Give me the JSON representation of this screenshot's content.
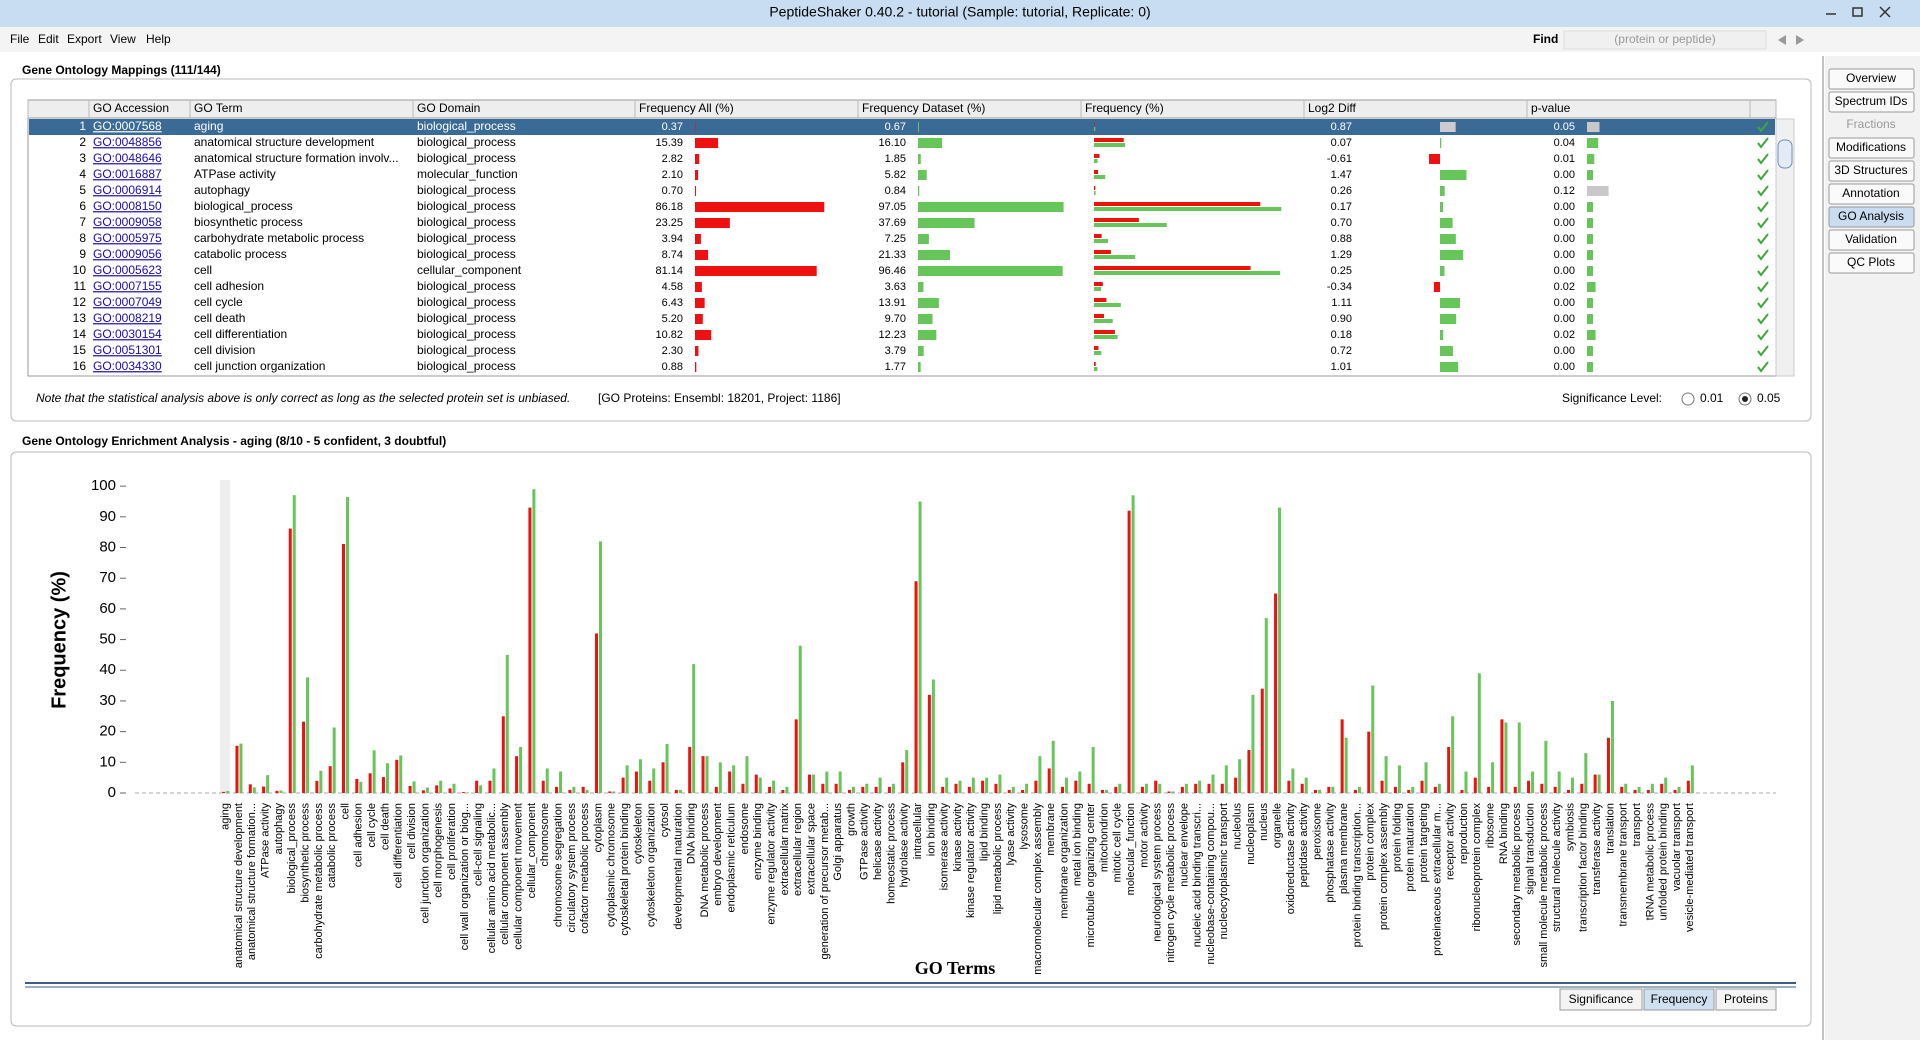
{
  "window": {
    "title": "PeptideShaker 0.40.2 - tutorial (Sample: tutorial, Replicate: 0)"
  },
  "menu": [
    "File",
    "Edit",
    "Export",
    "View",
    "Help"
  ],
  "find": {
    "label": "Find",
    "placeholder": "(protein or peptide)"
  },
  "side_tabs": [
    "Overview",
    "Spectrum IDs",
    "Fractions",
    "Modifications",
    "3D Structures",
    "Annotation",
    "GO Analysis",
    "Validation",
    "QC Plots"
  ],
  "mappings": {
    "title": "Gene Ontology Mappings (111/144)",
    "columns": [
      "GO Accession",
      "GO Term",
      "GO Domain",
      "Frequency All (%)",
      "Frequency Dataset (%)",
      "Frequency (%)",
      "Log2 Diff",
      "p-value"
    ],
    "rows": [
      [
        1,
        "GO:0007568",
        "aging",
        "biological_process",
        "0.37",
        "0.67",
        "0.87",
        "0.05"
      ],
      [
        2,
        "GO:0048856",
        "anatomical structure development",
        "biological_process",
        "15.39",
        "16.10",
        "0.07",
        "0.04"
      ],
      [
        3,
        "GO:0048646",
        "anatomical structure formation involv...",
        "biological_process",
        "2.82",
        "1.85",
        "-0.61",
        "0.01"
      ],
      [
        4,
        "GO:0016887",
        "ATPase activity",
        "molecular_function",
        "2.10",
        "5.82",
        "1.47",
        "0.00"
      ],
      [
        5,
        "GO:0006914",
        "autophagy",
        "biological_process",
        "0.70",
        "0.84",
        "0.26",
        "0.12"
      ],
      [
        6,
        "GO:0008150",
        "biological_process",
        "biological_process",
        "86.18",
        "97.05",
        "0.17",
        "0.00"
      ],
      [
        7,
        "GO:0009058",
        "biosynthetic process",
        "biological_process",
        "23.25",
        "37.69",
        "0.70",
        "0.00"
      ],
      [
        8,
        "GO:0005975",
        "carbohydrate metabolic process",
        "biological_process",
        "3.94",
        "7.25",
        "0.88",
        "0.00"
      ],
      [
        9,
        "GO:0009056",
        "catabolic process",
        "biological_process",
        "8.74",
        "21.33",
        "1.29",
        "0.00"
      ],
      [
        10,
        "GO:0005623",
        "cell",
        "cellular_component",
        "81.14",
        "96.46",
        "0.25",
        "0.00"
      ],
      [
        11,
        "GO:0007155",
        "cell adhesion",
        "biological_process",
        "4.58",
        "3.63",
        "-0.34",
        "0.02"
      ],
      [
        12,
        "GO:0007049",
        "cell cycle",
        "biological_process",
        "6.43",
        "13.91",
        "1.11",
        "0.00"
      ],
      [
        13,
        "GO:0008219",
        "cell death",
        "biological_process",
        "5.20",
        "9.70",
        "0.90",
        "0.00"
      ],
      [
        14,
        "GO:0030154",
        "cell differentiation",
        "biological_process",
        "10.82",
        "12.23",
        "0.18",
        "0.02"
      ],
      [
        15,
        "GO:0051301",
        "cell division",
        "biological_process",
        "2.30",
        "3.79",
        "0.72",
        "0.00"
      ],
      [
        16,
        "GO:0034330",
        "cell junction organization",
        "biological_process",
        "0.88",
        "1.77",
        "1.01",
        "0.00"
      ]
    ],
    "note": "Note that the statistical analysis above is only correct as long as the selected protein set is unbiased.",
    "counts": "[GO Proteins: Ensembl: 18201, Project: 1186]",
    "significance_label": "Significance Level:",
    "significance_options": [
      0.01,
      0.05
    ]
  },
  "enrichment": {
    "title": "Gene Ontology Enrichment Analysis - aging (8/10 - 5 confident, 3 doubtful)",
    "tabs": [
      "Significance",
      "Frequency",
      "Proteins"
    ]
  },
  "chart_data": {
    "type": "bar",
    "y_label": "Frequency (%)",
    "x_label": "GO Terms",
    "ylim": [
      0,
      102
    ],
    "yticks": [
      0,
      10,
      20,
      30,
      40,
      50,
      60,
      70,
      80,
      90,
      100
    ],
    "categories": [
      "aging",
      "anatomical structure development",
      "anatomical structure formation...",
      "ATPase activity",
      "autophagy",
      "biological_process",
      "biosynthetic process",
      "carbohydrate metabolic process",
      "catabolic process",
      "cell",
      "cell adhesion",
      "cell cycle",
      "cell death",
      "cell differentiation",
      "cell division",
      "cell junction organization",
      "cell morphogenesis",
      "cell proliferation",
      "cell wall organization or biog...",
      "cell-cell signaling",
      "cellular amino acid metabolic...",
      "cellular component assembly",
      "cellular component movement",
      "cellular_component",
      "chromosome",
      "chromosome segregation",
      "circulatory system process",
      "cofactor metabolic process",
      "cytoplasm",
      "cytoplasmic chromosome",
      "cytoskeletal protein binding",
      "cytoskeleton",
      "cytoskeleton organization",
      "cytosol",
      "developmental maturation",
      "DNA binding",
      "DNA metabolic process",
      "embryo development",
      "endoplasmic reticulum",
      "endosome",
      "enzyme binding",
      "enzyme regulator activity",
      "extracellular matrix",
      "extracellular region",
      "extracellular space",
      "generation of precursor metab...",
      "Golgi apparatus",
      "growth",
      "GTPase activity",
      "helicase activity",
      "homeostatic process",
      "hydrolase activity",
      "intracellular",
      "ion binding",
      "isomerase activity",
      "kinase activity",
      "kinase regulator activity",
      "lipid binding",
      "lipid metabolic process",
      "lyase activity",
      "lysosome",
      "macromolecular complex assembly",
      "membrane",
      "membrane organization",
      "metal ion binding",
      "microtubule organizing center",
      "mitochondrion",
      "mitotic cell cycle",
      "molecular_function",
      "motor activity",
      "neurological system process",
      "nitrogen cycle metabolic process",
      "nuclear envelope",
      "nucleic acid binding transcri...",
      "nucleobase-containing compou...",
      "nucleocytoplasmic transport",
      "nucleolus",
      "nucleoplasm",
      "nucleus",
      "organelle",
      "oxidoreductase activity",
      "peptidase activity",
      "peroxisome",
      "phosphatase activity",
      "plasma membrane",
      "protein binding transcription...",
      "protein complex",
      "protein complex assembly",
      "protein folding",
      "protein maturation",
      "protein targeting",
      "proteinaceous extracellular m...",
      "receptor activity",
      "reproduction",
      "ribonucleoprotein complex",
      "ribosome",
      "RNA binding",
      "secondary metabolic process",
      "signal transduction",
      "small molecule metabolic process",
      "structural molecule activity",
      "symbiosis",
      "transcription factor binding",
      "transferase activity",
      "translation",
      "transmembrane transport",
      "transport",
      "tRNA metabolic process",
      "unfolded protein binding",
      "vacuolar transport",
      "vesicle-mediated transport"
    ],
    "series": [
      {
        "color": "#ee1111",
        "values": [
          0.37,
          15.39,
          2.82,
          2.1,
          0.7,
          86.18,
          23.25,
          3.94,
          8.74,
          81.14,
          4.58,
          6.43,
          5.2,
          10.82,
          2.3,
          0.88,
          2.5,
          1.5,
          0.3,
          4,
          4,
          25,
          12,
          93,
          4,
          2,
          1,
          2,
          52,
          0.5,
          5,
          7,
          4,
          10,
          1,
          15,
          12,
          2,
          7,
          3,
          6,
          2,
          1,
          24,
          6,
          3,
          3,
          1,
          2,
          2,
          2,
          10,
          69,
          32,
          2,
          3,
          2,
          4,
          3,
          1,
          1,
          4,
          8,
          2,
          4,
          3,
          1,
          2,
          92,
          2,
          4,
          0.5,
          2,
          3,
          3,
          3,
          5,
          14,
          34,
          65,
          4,
          3,
          1,
          2,
          24,
          1,
          20,
          4,
          2,
          1,
          4,
          2,
          15,
          1,
          5,
          2,
          24,
          2,
          4,
          3,
          2,
          1,
          3,
          6,
          18,
          2,
          1,
          1,
          3,
          1,
          4
        ]
      },
      {
        "color": "#66c65a",
        "values": [
          0.67,
          16.1,
          1.85,
          5.82,
          0.84,
          97.05,
          37.69,
          7.25,
          21.33,
          96.46,
          3.63,
          13.91,
          9.7,
          12.23,
          3.79,
          1.77,
          4,
          3,
          0.2,
          2.5,
          8,
          45,
          15,
          99,
          8,
          7,
          2,
          1,
          82,
          0.5,
          9,
          11,
          8,
          16,
          1,
          42,
          12,
          10,
          9,
          12,
          5,
          4,
          2,
          48,
          6,
          7,
          7,
          2,
          3,
          5,
          3,
          14,
          95,
          37,
          5,
          4,
          5,
          5,
          6,
          2,
          3,
          12,
          17,
          5,
          7,
          15,
          1,
          3,
          97,
          3,
          3,
          0.5,
          3,
          4,
          6,
          9,
          11,
          32,
          57,
          93,
          8,
          5,
          1,
          2,
          18,
          2,
          35,
          12,
          9,
          2,
          10,
          3,
          25,
          7,
          39,
          10,
          23,
          23,
          7,
          17,
          7,
          5,
          13,
          6,
          30,
          3,
          2,
          3,
          5,
          2,
          9
        ]
      }
    ]
  }
}
